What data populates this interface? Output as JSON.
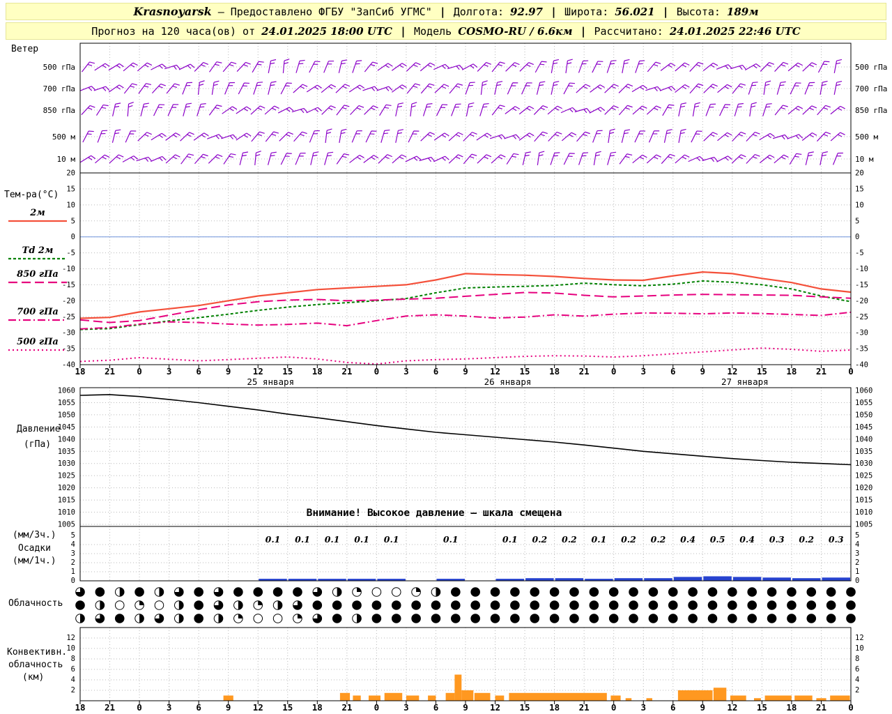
{
  "header": {
    "line1": {
      "station": "Krasnoyarsk",
      "provider": "— Предоставлено ФГБУ \"ЗапСиб УГМС\"",
      "sep": "|",
      "lon_label": "Долгота:",
      "lon_value": "92.97",
      "lat_label": "Широта:",
      "lat_value": "56.021",
      "alt_label": "Высота:",
      "alt_value": "189м"
    },
    "line2": {
      "forecast_label": "Прогноз на 120 часа(ов) от",
      "forecast_time": "24.01.2025 18:00 UTC",
      "sep": "|",
      "model_label": "Модель",
      "model_value": "COSMO-RU / 6.6км",
      "calc_label": "Рассчитано:",
      "calc_time": "24.01.2025 22:46 UTC"
    }
  },
  "labels": {
    "wind": "Ветер",
    "temp_axis": "Тем-ра(°C)",
    "pressure_1": "Давление",
    "pressure_2": "(гПа)",
    "precip_1": "(мм/3ч.)",
    "precip_2": "Осадки",
    "precip_3": "(мм/1ч.)",
    "cloud": "Облачность",
    "conv_1": "Конвективн.",
    "conv_2": "облачность",
    "conv_3": "(км)",
    "warning": "Внимание! Высокое давление — шкала смещена"
  },
  "chart_data": {
    "type": "meteogram",
    "x_axis": {
      "tick_labels": [
        "18",
        "21",
        "0",
        "3",
        "6",
        "9",
        "12",
        "15",
        "18",
        "21",
        "0",
        "3",
        "6",
        "9",
        "12",
        "15",
        "18",
        "21",
        "0",
        "3",
        "6",
        "9",
        "12",
        "15",
        "18",
        "21",
        "0"
      ],
      "date_labels": [
        "25 января",
        "26 января",
        "27 января"
      ],
      "date_center_ticks": [
        6,
        14,
        22
      ]
    },
    "wind": {
      "levels": [
        "500 гПа",
        "700 гПа",
        "850 гПа",
        "500 м",
        "10 м"
      ],
      "barb_color": "#8b00c8"
    },
    "temperature": {
      "ylim": [
        -40,
        20
      ],
      "yticks": [
        20,
        15,
        10,
        5,
        0,
        -5,
        -10,
        -15,
        -20,
        -25,
        -30,
        -35,
        -40
      ],
      "zero_line_color": "#7f9fdf",
      "series": [
        {
          "name": "2м",
          "style": "solid",
          "color": "#f4503a",
          "values": [
            -25.5,
            -25.2,
            -23.5,
            -22.5,
            -21.5,
            -20,
            -18.5,
            -17.5,
            -16.5,
            -16,
            -15.5,
            -15,
            -13.5,
            -11.5,
            -11.8,
            -12,
            -12.4,
            -13,
            -13.5,
            -13.6,
            -12.2,
            -11,
            -11.5,
            -13,
            -14.3,
            -16.3,
            -17.3
          ]
        },
        {
          "name": "Td 2м",
          "style": "dashed",
          "color": "#008000",
          "values": [
            -29,
            -28.7,
            -27.5,
            -26.3,
            -25.3,
            -24.2,
            -23,
            -22,
            -21.2,
            -20.6,
            -20,
            -19.3,
            -17.5,
            -16,
            -15.7,
            -15.5,
            -15.2,
            -14.5,
            -15,
            -15.3,
            -14.8,
            -13.8,
            -14.2,
            -15,
            -16.3,
            -18.5,
            -20.3
          ]
        },
        {
          "name": "850 гПа",
          "style": "longdash",
          "color": "#e6007e",
          "values": [
            -26,
            -26.8,
            -26.2,
            -24.5,
            -22.8,
            -21.3,
            -20.3,
            -19.8,
            -19.6,
            -20,
            -19.8,
            -19.5,
            -19.2,
            -18.6,
            -18,
            -17.4,
            -17.6,
            -18.3,
            -18.8,
            -18.5,
            -18.2,
            -18,
            -18.1,
            -18.2,
            -18.3,
            -18.8,
            -19.2
          ]
        },
        {
          "name": "700 гПа",
          "style": "dashdot",
          "color": "#e6007e",
          "values": [
            -28.8,
            -28.4,
            -27.3,
            -26.6,
            -26.8,
            -27.3,
            -27.6,
            -27.4,
            -27,
            -27.8,
            -26.2,
            -24.8,
            -24.4,
            -24.8,
            -25.4,
            -25.1,
            -24.4,
            -24.8,
            -24.2,
            -23.8,
            -23.9,
            -24.1,
            -23.8,
            -24,
            -24.3,
            -24.6,
            -23.6
          ]
        },
        {
          "name": "500 гПа",
          "style": "dotted",
          "color": "#e6007e",
          "values": [
            -39,
            -38.6,
            -37.8,
            -38.3,
            -38.8,
            -38.4,
            -38,
            -37.6,
            -38.2,
            -39.3,
            -39.8,
            -38.8,
            -38.4,
            -38.2,
            -37.8,
            -37.4,
            -37.2,
            -37.3,
            -37.6,
            -37.2,
            -36.6,
            -36,
            -35.4,
            -34.8,
            -35.2,
            -35.8,
            -35.4
          ]
        }
      ]
    },
    "pressure": {
      "ylim": [
        1005,
        1060
      ],
      "yticks": [
        1060,
        1055,
        1050,
        1045,
        1040,
        1035,
        1030,
        1025,
        1020,
        1015,
        1010,
        1005
      ],
      "color": "#000000",
      "values": [
        1058,
        1058.3,
        1057.5,
        1056.3,
        1055,
        1053.5,
        1052,
        1050.3,
        1048.8,
        1047.2,
        1045.6,
        1044.2,
        1042.8,
        1041.8,
        1040.8,
        1039.8,
        1038.8,
        1037.6,
        1036.3,
        1035,
        1034,
        1033,
        1032,
        1031.2,
        1030.5,
        1030,
        1029.5
      ]
    },
    "precipitation": {
      "ylim": [
        0,
        5
      ],
      "yticks": [
        5,
        4,
        3,
        2,
        1,
        0
      ],
      "bar_color": "#2743cf",
      "amounts_3h": [
        {
          "tick": 6,
          "value": 0.1
        },
        {
          "tick": 7,
          "value": 0.1
        },
        {
          "tick": 8,
          "value": 0.1
        },
        {
          "tick": 9,
          "value": 0.1
        },
        {
          "tick": 10,
          "value": 0.1
        },
        {
          "tick": 12,
          "value": 0.1
        },
        {
          "tick": 14,
          "value": 0.1
        },
        {
          "tick": 15,
          "value": 0.2
        },
        {
          "tick": 16,
          "value": 0.2
        },
        {
          "tick": 17,
          "value": 0.1
        },
        {
          "tick": 18,
          "value": 0.2
        },
        {
          "tick": 19,
          "value": 0.2
        },
        {
          "tick": 20,
          "value": 0.4
        },
        {
          "tick": 21,
          "value": 0.5
        },
        {
          "tick": 22,
          "value": 0.4
        },
        {
          "tick": 23,
          "value": 0.3
        },
        {
          "tick": 24,
          "value": 0.2
        },
        {
          "tick": 25,
          "value": 0.3
        }
      ]
    },
    "cloudiness": {
      "quarters_rows": [
        "3424234344443210012444444444444444444444",
        "4201024321234444444444444444444444444444",
        "2342324210013424444444444444444444444444"
      ]
    },
    "convective": {
      "ylim": [
        0,
        12
      ],
      "yticks": [
        12,
        10,
        8,
        6,
        4,
        2
      ],
      "bar_color": "#ff9820",
      "bars": [
        {
          "t": 14.5,
          "d": 1,
          "h": 1
        },
        {
          "t": 26.3,
          "d": 1,
          "h": 1.5
        },
        {
          "t": 27.6,
          "d": 0.8,
          "h": 1
        },
        {
          "t": 29.2,
          "d": 1.2,
          "h": 1
        },
        {
          "t": 30.8,
          "d": 1.8,
          "h": 1.5
        },
        {
          "t": 33,
          "d": 1.3,
          "h": 1
        },
        {
          "t": 35.2,
          "d": 0.8,
          "h": 1
        },
        {
          "t": 37,
          "d": 0.9,
          "h": 1.5
        },
        {
          "t": 37.9,
          "d": 0.7,
          "h": 5
        },
        {
          "t": 38.6,
          "d": 1.2,
          "h": 2
        },
        {
          "t": 39.9,
          "d": 1.6,
          "h": 1.5
        },
        {
          "t": 42,
          "d": 0.9,
          "h": 1
        },
        {
          "t": 43.4,
          "d": 9.9,
          "h": 1.5
        },
        {
          "t": 53.7,
          "d": 1,
          "h": 1
        },
        {
          "t": 55.2,
          "d": 0.6,
          "h": 0.5
        },
        {
          "t": 57.3,
          "d": 0.6,
          "h": 0.5
        },
        {
          "t": 60.5,
          "d": 3.5,
          "h": 2
        },
        {
          "t": 64.1,
          "d": 1.3,
          "h": 2.5
        },
        {
          "t": 65.8,
          "d": 1.6,
          "h": 1
        },
        {
          "t": 68.2,
          "d": 0.7,
          "h": 0.5
        },
        {
          "t": 69.3,
          "d": 2.7,
          "h": 1
        },
        {
          "t": 72.3,
          "d": 1.8,
          "h": 1
        },
        {
          "t": 74.5,
          "d": 1,
          "h": 0.5
        },
        {
          "t": 75.9,
          "d": 2,
          "h": 1
        }
      ]
    }
  }
}
